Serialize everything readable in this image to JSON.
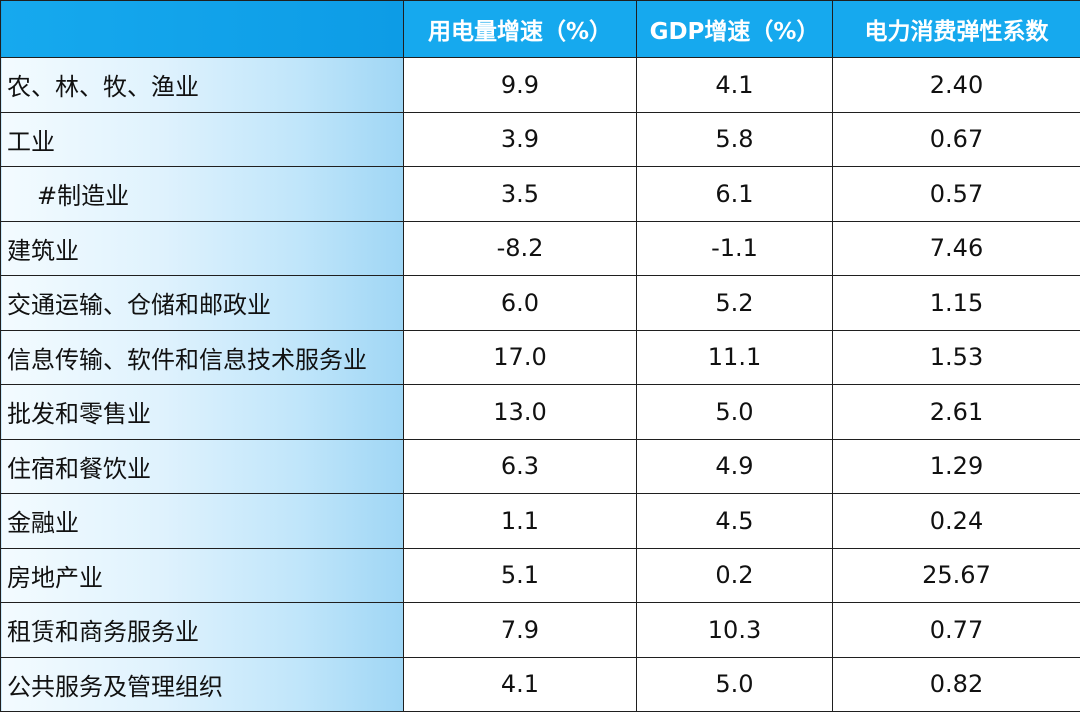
{
  "chart_data": {
    "type": "table",
    "columns": [
      "",
      "用电量增速（%）",
      "GDP增速（%）",
      "电力消费弹性系数"
    ],
    "rows": [
      {
        "label": "农、林、牧、渔业",
        "indent": false,
        "values": [
          "9.9",
          "4.1",
          "2.40"
        ]
      },
      {
        "label": "工业",
        "indent": false,
        "values": [
          "3.9",
          "5.8",
          "0.67"
        ]
      },
      {
        "label": "#制造业",
        "indent": true,
        "values": [
          "3.5",
          "6.1",
          "0.57"
        ]
      },
      {
        "label": "建筑业",
        "indent": false,
        "values": [
          "-8.2",
          "-1.1",
          "7.46"
        ]
      },
      {
        "label": "交通运输、仓储和邮政业",
        "indent": false,
        "values": [
          "6.0",
          "5.2",
          "1.15"
        ]
      },
      {
        "label": "信息传输、软件和信息技术服务业",
        "indent": false,
        "values": [
          "17.0",
          "11.1",
          "1.53"
        ]
      },
      {
        "label": "批发和零售业",
        "indent": false,
        "values": [
          "13.0",
          "5.0",
          "2.61"
        ]
      },
      {
        "label": "住宿和餐饮业",
        "indent": false,
        "values": [
          "6.3",
          "4.9",
          "1.29"
        ]
      },
      {
        "label": "金融业",
        "indent": false,
        "values": [
          "1.1",
          "4.5",
          "0.24"
        ]
      },
      {
        "label": "房地产业",
        "indent": false,
        "values": [
          "5.1",
          "0.2",
          "25.67"
        ]
      },
      {
        "label": "租赁和商务服务业",
        "indent": false,
        "values": [
          "7.9",
          "10.3",
          "0.77"
        ]
      },
      {
        "label": "公共服务及管理组织",
        "indent": false,
        "values": [
          "4.1",
          "5.0",
          "0.82"
        ]
      }
    ]
  },
  "colors": {
    "header_bg": "#16a9ee",
    "header_text": "#ffffff",
    "label_gradient_end": "#9fd6f5",
    "border": "#1f1f1f"
  }
}
